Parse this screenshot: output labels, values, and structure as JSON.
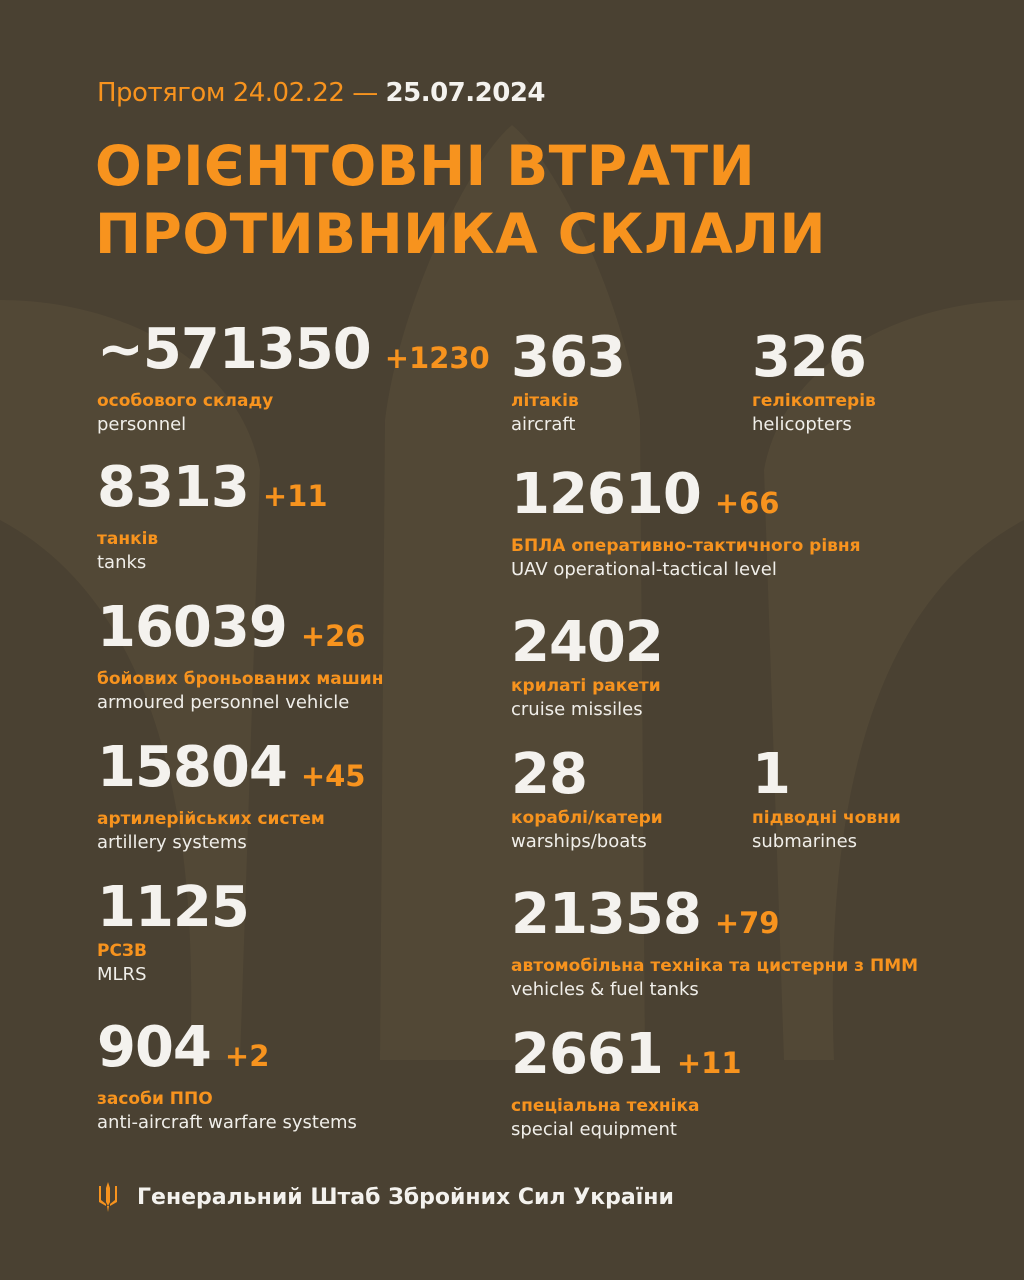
{
  "header": {
    "period_prefix": "Протягом 24.02.22 —",
    "period_end": "25.07.2024",
    "title_line1": "ОРІЄНТОВНІ ВТРАТИ",
    "title_line2": "ПРОТИВНИКА СКЛАЛИ"
  },
  "colors": {
    "background": "#4a4132",
    "accent": "#f7931e",
    "text": "#f4f2ee"
  },
  "stats": [
    {
      "value": "~571350",
      "delta": "+1230",
      "ua": "особового складу",
      "en": "personnel"
    },
    {
      "value": "8313",
      "delta": "+11",
      "ua": "танків",
      "en": "tanks"
    },
    {
      "value": "16039",
      "delta": "+26",
      "ua": "бойових броньованих машин",
      "en": "armoured personnel vehicle"
    },
    {
      "value": "15804",
      "delta": "+45",
      "ua": "артилерійських систем",
      "en": "artillery systems"
    },
    {
      "value": "1125",
      "delta": "",
      "ua": "РСЗВ",
      "en": "MLRS"
    },
    {
      "value": "904",
      "delta": "+2",
      "ua": "засоби ППО",
      "en": "anti-aircraft warfare systems"
    },
    {
      "value": "363",
      "delta": "",
      "ua": "літаків",
      "en": "aircraft"
    },
    {
      "value": "326",
      "delta": "",
      "ua": "гелікоптерів",
      "en": "helicopters"
    },
    {
      "value": "12610",
      "delta": "+66",
      "ua": "БПЛА оперативно-тактичного рівня",
      "en": "UAV operational-tactical level"
    },
    {
      "value": "2402",
      "delta": "",
      "ua": "крилаті ракети",
      "en": "cruise missiles"
    },
    {
      "value": "28",
      "delta": "",
      "ua": "кораблі/катери",
      "en": "warships/boats"
    },
    {
      "value": "1",
      "delta": "",
      "ua": "підводні човни",
      "en": "submarines"
    },
    {
      "value": "21358",
      "delta": "+79",
      "ua": "автомобільна техніка та цистерни з ПММ",
      "en": "vehicles & fuel tanks"
    },
    {
      "value": "2661",
      "delta": "+11",
      "ua": "спеціальна техніка",
      "en": "special equipment"
    }
  ],
  "footer": {
    "org": "Генеральний Штаб Збройних Сил України",
    "icon": "trident-icon"
  }
}
